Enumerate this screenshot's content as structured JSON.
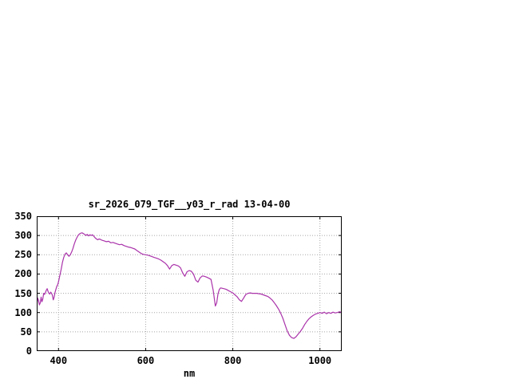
{
  "chart_data": {
    "type": "line",
    "title": "sr_2026_079_TGF__y03_r_rad 13-04-00",
    "xlabel": "nm",
    "ylabel": "",
    "xlim": [
      350,
      1050
    ],
    "ylim": [
      0,
      350
    ],
    "xticks": [
      400,
      600,
      800,
      1000
    ],
    "yticks": [
      0,
      50,
      100,
      150,
      200,
      250,
      300,
      350
    ],
    "grid": true,
    "legend": "none",
    "line_color": "#aa33aa",
    "grid_color": "#a8a8a8",
    "series": [
      {
        "name": "sr_2026_079_TGF__y03_r_rad",
        "points": [
          [
            350,
            113
          ],
          [
            352,
            138
          ],
          [
            354,
            132
          ],
          [
            356,
            120
          ],
          [
            358,
            125
          ],
          [
            360,
            140
          ],
          [
            362,
            128
          ],
          [
            364,
            135
          ],
          [
            366,
            150
          ],
          [
            368,
            147
          ],
          [
            370,
            152
          ],
          [
            372,
            158
          ],
          [
            374,
            162
          ],
          [
            376,
            155
          ],
          [
            378,
            150
          ],
          [
            380,
            148
          ],
          [
            382,
            153
          ],
          [
            384,
            150
          ],
          [
            386,
            145
          ],
          [
            388,
            133
          ],
          [
            390,
            140
          ],
          [
            392,
            152
          ],
          [
            394,
            160
          ],
          [
            396,
            168
          ],
          [
            398,
            172
          ],
          [
            400,
            180
          ],
          [
            403,
            196
          ],
          [
            406,
            212
          ],
          [
            409,
            230
          ],
          [
            412,
            243
          ],
          [
            415,
            252
          ],
          [
            418,
            255
          ],
          [
            421,
            250
          ],
          [
            424,
            246
          ],
          [
            427,
            250
          ],
          [
            430,
            257
          ],
          [
            433,
            266
          ],
          [
            436,
            277
          ],
          [
            439,
            287
          ],
          [
            442,
            294
          ],
          [
            445,
            300
          ],
          [
            448,
            304
          ],
          [
            451,
            306
          ],
          [
            454,
            307
          ],
          [
            457,
            305
          ],
          [
            460,
            303
          ],
          [
            463,
            300
          ],
          [
            466,
            303
          ],
          [
            469,
            299
          ],
          [
            472,
            302
          ],
          [
            475,
            300
          ],
          [
            478,
            302
          ],
          [
            481,
            298
          ],
          [
            484,
            294
          ],
          [
            487,
            291
          ],
          [
            490,
            289
          ],
          [
            493,
            291
          ],
          [
            496,
            290
          ],
          [
            499,
            288
          ],
          [
            502,
            287
          ],
          [
            505,
            286
          ],
          [
            510,
            284
          ],
          [
            515,
            285
          ],
          [
            520,
            281
          ],
          [
            525,
            282
          ],
          [
            530,
            280
          ],
          [
            535,
            278
          ],
          [
            540,
            276
          ],
          [
            545,
            277
          ],
          [
            550,
            274
          ],
          [
            555,
            272
          ],
          [
            560,
            270
          ],
          [
            565,
            269
          ],
          [
            570,
            267
          ],
          [
            575,
            265
          ],
          [
            580,
            261
          ],
          [
            585,
            257
          ],
          [
            590,
            253
          ],
          [
            595,
            251
          ],
          [
            600,
            250
          ],
          [
            605,
            249
          ],
          [
            610,
            247
          ],
          [
            615,
            245
          ],
          [
            620,
            243
          ],
          [
            625,
            241
          ],
          [
            630,
            239
          ],
          [
            635,
            236
          ],
          [
            640,
            232
          ],
          [
            645,
            228
          ],
          [
            650,
            222
          ],
          [
            655,
            213
          ],
          [
            660,
            222
          ],
          [
            665,
            225
          ],
          [
            670,
            223
          ],
          [
            675,
            221
          ],
          [
            680,
            216
          ],
          [
            685,
            203
          ],
          [
            690,
            194
          ],
          [
            695,
            206
          ],
          [
            700,
            209
          ],
          [
            705,
            207
          ],
          [
            710,
            199
          ],
          [
            715,
            184
          ],
          [
            720,
            179
          ],
          [
            725,
            190
          ],
          [
            730,
            195
          ],
          [
            735,
            194
          ],
          [
            740,
            192
          ],
          [
            745,
            189
          ],
          [
            750,
            186
          ],
          [
            755,
            158
          ],
          [
            760,
            117
          ],
          [
            763,
            125
          ],
          [
            766,
            148
          ],
          [
            769,
            160
          ],
          [
            772,
            164
          ],
          [
            776,
            163
          ],
          [
            780,
            162
          ],
          [
            785,
            160
          ],
          [
            790,
            157
          ],
          [
            795,
            154
          ],
          [
            800,
            151
          ],
          [
            805,
            146
          ],
          [
            810,
            141
          ],
          [
            815,
            133
          ],
          [
            820,
            129
          ],
          [
            825,
            138
          ],
          [
            830,
            147
          ],
          [
            835,
            150
          ],
          [
            840,
            151
          ],
          [
            845,
            150
          ],
          [
            850,
            150
          ],
          [
            855,
            150
          ],
          [
            860,
            149
          ],
          [
            865,
            148
          ],
          [
            870,
            146
          ],
          [
            875,
            144
          ],
          [
            880,
            142
          ],
          [
            885,
            138
          ],
          [
            890,
            133
          ],
          [
            895,
            126
          ],
          [
            900,
            118
          ],
          [
            905,
            109
          ],
          [
            910,
            98
          ],
          [
            915,
            85
          ],
          [
            920,
            68
          ],
          [
            925,
            52
          ],
          [
            930,
            41
          ],
          [
            935,
            35
          ],
          [
            940,
            33
          ],
          [
            945,
            37
          ],
          [
            950,
            44
          ],
          [
            955,
            51
          ],
          [
            960,
            59
          ],
          [
            965,
            69
          ],
          [
            970,
            77
          ],
          [
            975,
            84
          ],
          [
            980,
            89
          ],
          [
            985,
            93
          ],
          [
            990,
            96
          ],
          [
            995,
            98
          ],
          [
            1000,
            100
          ],
          [
            1005,
            98
          ],
          [
            1010,
            101
          ],
          [
            1015,
            97
          ],
          [
            1020,
            100
          ],
          [
            1025,
            98
          ],
          [
            1030,
            101
          ],
          [
            1035,
            99
          ],
          [
            1040,
            100
          ],
          [
            1045,
            102
          ],
          [
            1050,
            100
          ]
        ]
      }
    ]
  }
}
